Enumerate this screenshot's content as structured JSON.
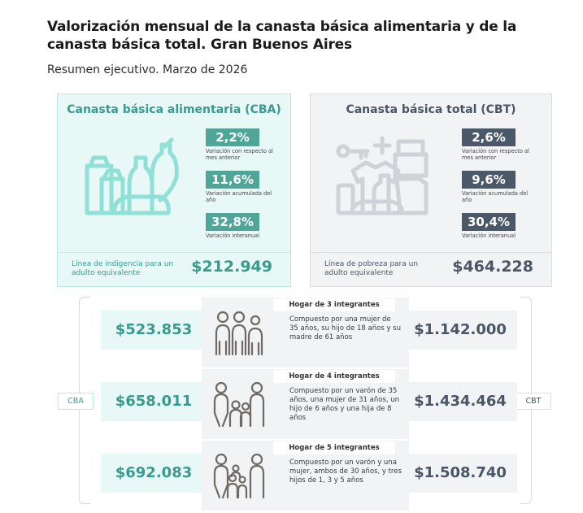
{
  "header": {
    "title": "Valorización mensual de la canasta básica alimentaria y de la canasta básica total. Gran Buenos Aires",
    "subtitle": "Resumen ejecutivo. Marzo de 2026"
  },
  "cba": {
    "title": "Canasta básica alimentaria (CBA)",
    "stats": [
      {
        "value": "2,2%",
        "label": "Variación con respecto al mes anterior"
      },
      {
        "value": "11,6%",
        "label": "Variación acumulada del año"
      },
      {
        "value": "32,8%",
        "label": "Variación interanual"
      }
    ],
    "footer_label": "Línea de indigencia para un adulto equivalente",
    "footer_value": "$212.949",
    "icon": "food-basket-icon",
    "accent_color": "#3a9a8e"
  },
  "cbt": {
    "title": "Canasta básica total (CBT)",
    "stats": [
      {
        "value": "2,6%",
        "label": "Variación con respecto al mes anterior"
      },
      {
        "value": "9,6%",
        "label": "Variación acumulada del año"
      },
      {
        "value": "30,4%",
        "label": "Variación interanual"
      }
    ],
    "footer_label": "Línea de pobreza para un adulto equivalente",
    "footer_value": "$464.228",
    "icon": "goods-basket-icon",
    "accent_color": "#4a5565"
  },
  "side_tags": {
    "left": "CBA",
    "right": "CBT"
  },
  "households": [
    {
      "title": "Hogar de 3 integrantes",
      "description": "Compuesto por una mujer de 35 años, su hijo de 18 años y su madre de 61 años",
      "cba_value": "$523.853",
      "cbt_value": "$1.142.000",
      "icon": "family-3-icon"
    },
    {
      "title": "Hogar de 4 integrantes",
      "description": "Compuesto por un varón de 35 años, una mujer de 31 años, un hijo de 6 años y una hija de 8 años",
      "cba_value": "$658.011",
      "cbt_value": "$1.434.464",
      "icon": "family-4-icon"
    },
    {
      "title": "Hogar de 5 integrantes",
      "description": "Compuesto por un varón y una mujer, ambos de 30 años, y tres hijos de 1, 3 y 5 años",
      "cba_value": "$692.083",
      "cbt_value": "$1.508.740",
      "icon": "family-5-icon"
    }
  ]
}
